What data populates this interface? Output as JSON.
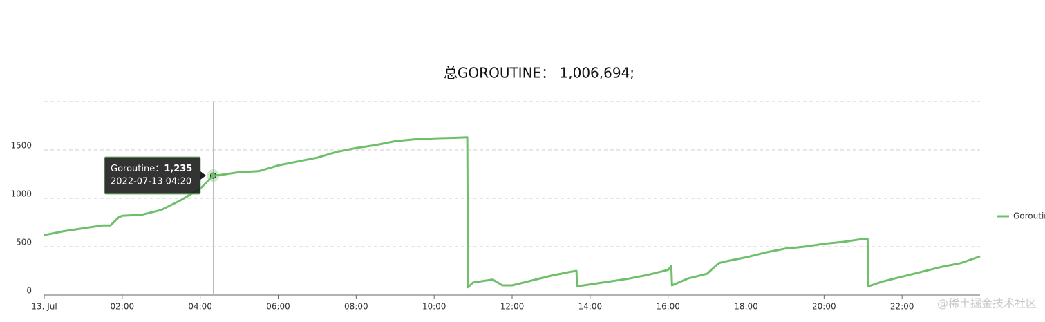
{
  "chart_data": {
    "type": "line",
    "title": "总GOROUTINE： 1,006,694;",
    "x": [
      "00:00",
      "00:30",
      "01:00",
      "01:30",
      "01:42",
      "01:54",
      "02:00",
      "02:30",
      "03:00",
      "03:30",
      "04:00",
      "04:20",
      "04:30",
      "05:00",
      "05:30",
      "06:00",
      "06:30",
      "07:00",
      "07:30",
      "08:00",
      "08:30",
      "09:00",
      "09:30",
      "10:00",
      "10:30",
      "10:51",
      "10:52",
      "11:00",
      "11:30",
      "11:45",
      "12:00",
      "12:30",
      "13:00",
      "13:30",
      "13:39",
      "13:40",
      "14:00",
      "14:30",
      "15:00",
      "15:30",
      "16:00",
      "16:05",
      "16:06",
      "16:30",
      "17:00",
      "17:18",
      "17:30",
      "18:00",
      "18:30",
      "19:00",
      "19:30",
      "20:00",
      "20:30",
      "21:00",
      "21:07",
      "21:08",
      "21:30",
      "22:00",
      "22:30",
      "23:00",
      "23:30",
      "24:00"
    ],
    "series": [
      {
        "name": "Goroutine",
        "color": "#6fbf6a",
        "values": [
          620,
          660,
          690,
          720,
          720,
          800,
          820,
          830,
          880,
          980,
          1100,
          1235,
          1240,
          1270,
          1280,
          1340,
          1380,
          1420,
          1480,
          1520,
          1550,
          1590,
          1610,
          1620,
          1625,
          1630,
          80,
          130,
          160,
          100,
          100,
          150,
          200,
          240,
          250,
          90,
          110,
          140,
          170,
          210,
          260,
          300,
          100,
          170,
          220,
          330,
          350,
          390,
          440,
          480,
          500,
          530,
          550,
          580,
          580,
          90,
          140,
          190,
          240,
          290,
          330,
          400
        ]
      }
    ],
    "xlim": [
      "00:00",
      "24:00"
    ],
    "xticks": [
      {
        "value": "00:00",
        "label": "13. Jul"
      },
      "02:00",
      "04:00",
      "06:00",
      "08:00",
      "10:00",
      "12:00",
      "14:00",
      "16:00",
      "18:00",
      "20:00",
      "22:00"
    ],
    "ylim": [
      0,
      2000
    ],
    "yticks": [
      0,
      500,
      1000,
      1500
    ],
    "grid": true,
    "legend": "right",
    "tooltip": {
      "series_label": "Goroutine：",
      "value": 1235,
      "value_label": "1,235",
      "time": "2022-07-13 04:20",
      "x": "04:20"
    },
    "watermark": "@稀土掘金技术社区"
  }
}
